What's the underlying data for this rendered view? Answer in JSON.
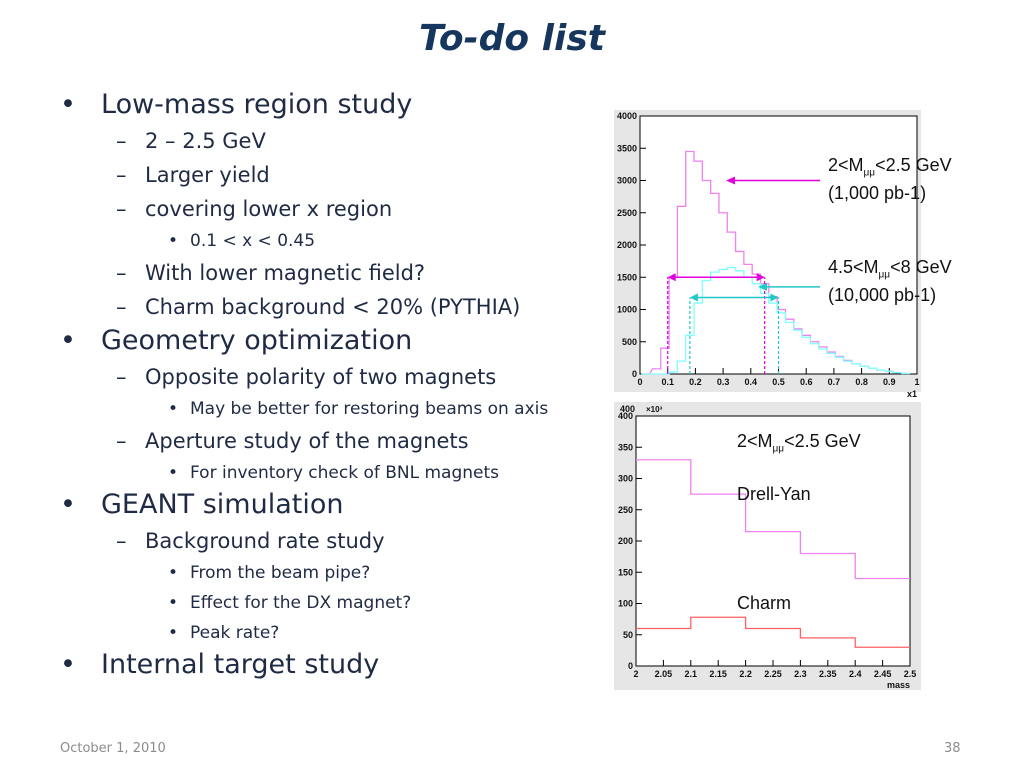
{
  "slide": {
    "title": "To-do list",
    "footer_date": "October 1, 2010",
    "page_number": "38"
  },
  "bullets": [
    {
      "level": 1,
      "marker": "•",
      "text": "Low-mass region study"
    },
    {
      "level": 2,
      "marker": "–",
      "text": "2  – 2.5 GeV"
    },
    {
      "level": 2,
      "marker": "–",
      "text": "Larger yield"
    },
    {
      "level": 2,
      "marker": "–",
      "text": "covering lower x region"
    },
    {
      "level": 3,
      "marker": "•",
      "text": "0.1 < x < 0.45"
    },
    {
      "level": 2,
      "marker": "–",
      "text": "With lower magnetic field?"
    },
    {
      "level": 2,
      "marker": "–",
      "text": "Charm background < 20% (PYTHIA)"
    },
    {
      "level": 1,
      "marker": "•",
      "text": "Geometry optimization"
    },
    {
      "level": 2,
      "marker": "–",
      "text": "Opposite polarity of two magnets"
    },
    {
      "level": 3,
      "marker": "•",
      "text": "May be better for restoring beams on axis"
    },
    {
      "level": 2,
      "marker": "–",
      "text": "Aperture study of the magnets"
    },
    {
      "level": 3,
      "marker": "•",
      "text": "For inventory check of BNL magnets"
    },
    {
      "level": 1,
      "marker": "•",
      "text": "GEANT simulation"
    },
    {
      "level": 2,
      "marker": "–",
      "text": "Background rate study"
    },
    {
      "level": 3,
      "marker": "•",
      "text": "From the beam pipe?"
    },
    {
      "level": 3,
      "marker": "•",
      "text": "Effect for the DX magnet?"
    },
    {
      "level": 3,
      "marker": "•",
      "text": "Peak rate?"
    },
    {
      "level": 1,
      "marker": "•",
      "text": "Internal target study"
    }
  ],
  "labels": {
    "top_low_mass": "2<M",
    "top_low_mass_sub": "μμ",
    "top_low_mass_rest": "<2.5 GeV",
    "top_low_lumi": "(1,000 pb-1)",
    "top_high_mass": "4.5<M",
    "top_high_mass_sub": "μμ",
    "top_high_mass_rest": "<8 GeV",
    "top_high_lumi": "(10,000 pb-1)",
    "bottom_mass": "2<M",
    "bottom_mass_sub": "μμ",
    "bottom_mass_rest": "<2.5 GeV",
    "drell_yan": "Drell-Yan",
    "charm": "Charm"
  },
  "chart_data": [
    {
      "type": "line",
      "xlabel": "x1",
      "ylabel": "",
      "xlim": [
        0,
        1
      ],
      "ylim": [
        0,
        4000
      ],
      "xticks": [
        "0",
        "0.1",
        "0.2",
        "0.3",
        "0.4",
        "0.5",
        "0.6",
        "0.7",
        "0.8",
        "0.9",
        "1"
      ],
      "yticks": [
        "0",
        "500",
        "1000",
        "1500",
        "2000",
        "2500",
        "3000",
        "3500",
        "4000"
      ],
      "grid": false,
      "colors": {
        "low_mass": "#ee82ee",
        "high_mass": "#80ffff"
      },
      "x": [
        0.02,
        0.06,
        0.09,
        0.12,
        0.15,
        0.18,
        0.21,
        0.24,
        0.27,
        0.3,
        0.33,
        0.36,
        0.39,
        0.42,
        0.45,
        0.48,
        0.51,
        0.54,
        0.57,
        0.6,
        0.63,
        0.66,
        0.69,
        0.72,
        0.75,
        0.78,
        0.81,
        0.84,
        0.87,
        0.9,
        0.93,
        0.96
      ],
      "series": [
        {
          "values": [
            0,
            80,
            400,
            1500,
            2600,
            3450,
            3300,
            3000,
            2800,
            2500,
            2200,
            1900,
            1700,
            1550,
            1400,
            1200,
            1000,
            850,
            700,
            600,
            500,
            420,
            340,
            270,
            210,
            160,
            120,
            90,
            60,
            40,
            20,
            10
          ]
        },
        {
          "values": [
            0,
            0,
            0,
            30,
            200,
            600,
            1100,
            1450,
            1580,
            1620,
            1650,
            1600,
            1500,
            1400,
            1250,
            1100,
            950,
            800,
            680,
            570,
            470,
            390,
            320,
            260,
            200,
            160,
            120,
            90,
            60,
            40,
            20,
            8
          ]
        }
      ],
      "annotations": {
        "low_range": [
          0.1,
          0.45
        ],
        "high_range": [
          0.18,
          0.5
        ]
      }
    },
    {
      "type": "line",
      "title": "",
      "xlabel": "mass",
      "ylabel": "",
      "y_multiplier": "×10³",
      "xlim": [
        2,
        2.5
      ],
      "ylim": [
        0,
        400
      ],
      "xticks": [
        "2",
        "2.05",
        "2.1",
        "2.15",
        "2.2",
        "2.25",
        "2.3",
        "2.35",
        "2.4",
        "2.45",
        "2.5"
      ],
      "yticks": [
        "0",
        "50",
        "100",
        "150",
        "200",
        "250",
        "300",
        "350",
        "400"
      ],
      "grid": false,
      "colors": {
        "drell_yan": "#ee82ee",
        "charm": "#ff6060"
      },
      "x_edges": [
        2.0,
        2.1,
        2.2,
        2.3,
        2.4,
        2.5
      ],
      "series": [
        {
          "values": [
            330,
            275,
            215,
            180,
            140
          ]
        },
        {
          "values": [
            60,
            78,
            60,
            45,
            30
          ]
        }
      ]
    }
  ]
}
